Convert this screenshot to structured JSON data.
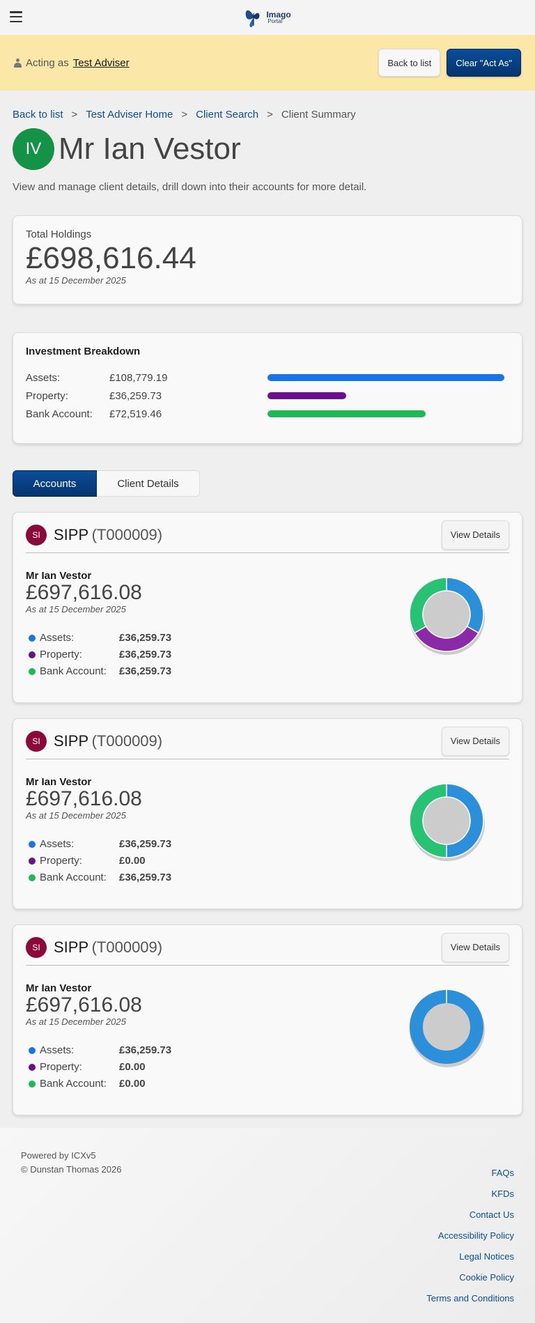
{
  "header": {
    "logo_line1": "Imago",
    "logo_line2": "Portal"
  },
  "acting": {
    "prefix": "Acting as",
    "name": "Test Adviser",
    "back_label": "Back to list",
    "clear_label": "Clear \"Act As\""
  },
  "breadcrumb": {
    "items": [
      "Back to list",
      "Test Adviser Home",
      "Client Search"
    ],
    "current": "Client Summary",
    "sep": ">"
  },
  "client": {
    "initials": "IV",
    "name": "Mr Ian Vestor",
    "subtitle": "View and manage client details, drill down into their accounts for more detail."
  },
  "holdings": {
    "label": "Total Holdings",
    "amount": "£698,616.44",
    "as_at": "As at 15 December 2025"
  },
  "breakdown": {
    "title": "Investment Breakdown",
    "rows": [
      {
        "label": "Assets:",
        "value": "£108,779.19",
        "fraction": 1.0,
        "color": "#1a73e8"
      },
      {
        "label": "Property:",
        "value": "£36,259.73",
        "fraction": 0.333,
        "color": "#6a0f8e"
      },
      {
        "label": "Bank Account:",
        "value": "£72,519.46",
        "fraction": 0.667,
        "color": "#1db954"
      }
    ]
  },
  "tabs": {
    "accounts": "Accounts",
    "client_details": "Client Details"
  },
  "accounts": [
    {
      "initials": "SI",
      "name": "SIPP",
      "code": "(T000009)",
      "view_label": "View Details",
      "client": "Mr Ian Vestor",
      "amount": "£697,616.08",
      "as_at": "As at 15 December 2025",
      "legend": [
        {
          "label": "Assets:",
          "value": "£36,259.73",
          "color": "#1a73e8"
        },
        {
          "label": "Property:",
          "value": "£36,259.73",
          "color": "#6a0f8e"
        },
        {
          "label": "Bank Account:",
          "value": "£36,259.73",
          "color": "#1db954"
        }
      ],
      "donut": [
        36259.73,
        36259.73,
        36259.73
      ]
    },
    {
      "initials": "SI",
      "name": "SIPP",
      "code": "(T000009)",
      "view_label": "View Details",
      "client": "Mr Ian Vestor",
      "amount": "£697,616.08",
      "as_at": "As at 15 December 2025",
      "legend": [
        {
          "label": "Assets:",
          "value": "£36,259.73",
          "color": "#1a73e8"
        },
        {
          "label": "Property:",
          "value": "£0.00",
          "color": "#6a0f8e"
        },
        {
          "label": "Bank Account:",
          "value": "£36,259.73",
          "color": "#1db954"
        }
      ],
      "donut": [
        36259.73,
        0,
        36259.73
      ]
    },
    {
      "initials": "SI",
      "name": "SIPP",
      "code": "(T000009)",
      "view_label": "View Details",
      "client": "Mr Ian Vestor",
      "amount": "£697,616.08",
      "as_at": "As at 15 December 2025",
      "legend": [
        {
          "label": "Assets:",
          "value": "£36,259.73",
          "color": "#1a73e8"
        },
        {
          "label": "Property:",
          "value": "£0.00",
          "color": "#6a0f8e"
        },
        {
          "label": "Bank Account:",
          "value": "£0.00",
          "color": "#1db954"
        }
      ],
      "donut": [
        36259.73,
        0,
        0
      ]
    }
  ],
  "donut_colors": [
    "#2b8fd9",
    "#8a2aa8",
    "#27c273"
  ],
  "footer": {
    "powered": "Powered by ICXv5",
    "copyright": "© Dunstan Thomas 2026",
    "links": [
      "FAQs",
      "KFDs",
      "Contact Us",
      "Accessibility Policy",
      "Legal Notices",
      "Cookie Policy",
      "Terms and Conditions"
    ]
  }
}
